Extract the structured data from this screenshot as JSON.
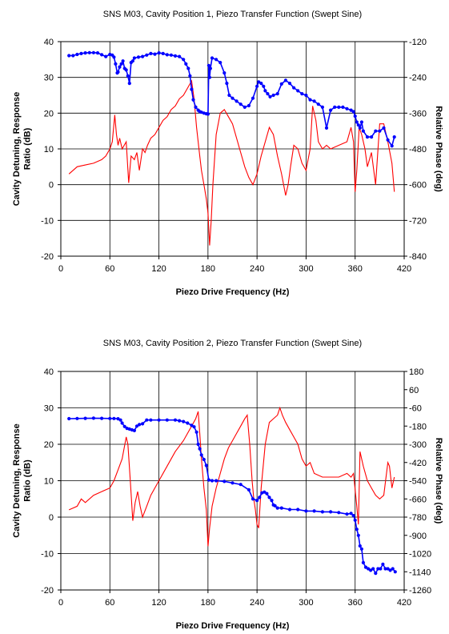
{
  "chart_data": [
    {
      "type": "line",
      "title": "SNS M03, Cavity Position 1, Piezo Transfer Function (Swept Sine)",
      "xlabel": "Piezo Drive Frequency (Hz)",
      "ylabel_left_lines": [
        "Cavity Detuning, Response",
        "Ratio (dB)"
      ],
      "ylabel_right": "Relative Phase (deg)",
      "xlim": [
        0,
        420
      ],
      "ylim": [
        -20,
        40
      ],
      "y2lim": [
        -840,
        -120
      ],
      "xticks": [
        "0",
        "60",
        "120",
        "180",
        "240",
        "300",
        "360",
        "420"
      ],
      "yticks": [
        "-20",
        "-10",
        "0",
        "10",
        "20",
        "30",
        "40"
      ],
      "y2ticks": [
        "-840",
        "-720",
        "-600",
        "-480",
        "-360",
        "-240",
        "-120"
      ],
      "grid": true,
      "series": [
        {
          "axis": "left",
          "color": "#ff0000",
          "marker": "none",
          "x": [
            10,
            20,
            30,
            40,
            50,
            55,
            60,
            63,
            66,
            68,
            70,
            72,
            75,
            80,
            83,
            86,
            90,
            93,
            96,
            100,
            103,
            106,
            110,
            115,
            120,
            125,
            130,
            135,
            140,
            145,
            150,
            155,
            160,
            163,
            166,
            168,
            170,
            172,
            175,
            178,
            180,
            182,
            184,
            186,
            190,
            195,
            200,
            205,
            210,
            215,
            220,
            225,
            230,
            235,
            240,
            245,
            250,
            255,
            260,
            265,
            270,
            275,
            278,
            281,
            285,
            290,
            295,
            300,
            305,
            308,
            312,
            315,
            320,
            325,
            330,
            340,
            350,
            355,
            358,
            360,
            362,
            365,
            368,
            372,
            375,
            380,
            385,
            390,
            395,
            400,
            405,
            408
          ],
          "y": [
            3,
            5,
            5.5,
            6,
            7,
            8,
            10,
            12,
            19.5,
            14,
            11,
            13,
            10,
            12,
            0.5,
            8,
            7,
            9,
            4,
            10,
            9,
            11,
            13,
            14,
            16,
            18,
            19,
            21,
            22,
            24,
            25,
            27,
            29,
            24,
            16,
            12,
            8,
            4,
            0,
            -4,
            -8,
            -17,
            -10,
            0,
            14,
            20,
            21,
            19,
            17,
            13,
            9,
            5,
            2,
            0,
            3,
            8,
            12,
            16,
            14,
            8,
            3,
            -3,
            0,
            5,
            11,
            10,
            6,
            4,
            10,
            22,
            18,
            12,
            10,
            11,
            10,
            11,
            12,
            16,
            12,
            -2,
            4,
            16,
            14,
            10,
            5,
            9,
            0,
            17,
            17,
            12,
            6,
            -2
          ]
        },
        {
          "axis": "right",
          "color": "#0000ff",
          "marker": "dot",
          "x": [
            10,
            15,
            20,
            25,
            30,
            35,
            40,
            45,
            50,
            55,
            60,
            63,
            65,
            67,
            69,
            70,
            72,
            74,
            76,
            78,
            80,
            82,
            84,
            86,
            88,
            90,
            95,
            100,
            105,
            110,
            115,
            120,
            125,
            130,
            135,
            140,
            145,
            150,
            153,
            156,
            158,
            160,
            162,
            165,
            168,
            170,
            172,
            175,
            178,
            180,
            181,
            182,
            183,
            185,
            190,
            195,
            200,
            203,
            206,
            210,
            215,
            220,
            225,
            230,
            235,
            240,
            242,
            245,
            248,
            250,
            253,
            256,
            260,
            265,
            270,
            275,
            280,
            285,
            290,
            295,
            300,
            305,
            310,
            315,
            320,
            325,
            330,
            335,
            340,
            345,
            350,
            355,
            358,
            360,
            362,
            364,
            366,
            368,
            370,
            375,
            380,
            385,
            390,
            395,
            400,
            405,
            408
          ],
          "y": [
            -167,
            -167,
            -163,
            -160,
            -158,
            -157,
            -157,
            -158,
            -164,
            -170,
            -163,
            -165,
            -172,
            -195,
            -225,
            -222,
            -205,
            -195,
            -185,
            -210,
            -215,
            -235,
            -260,
            -190,
            -185,
            -175,
            -172,
            -170,
            -165,
            -160,
            -162,
            -158,
            -160,
            -164,
            -165,
            -168,
            -170,
            -180,
            -195,
            -210,
            -235,
            -280,
            -315,
            -340,
            -350,
            -355,
            -357,
            -360,
            -362,
            -363,
            -200,
            -240,
            -210,
            -175,
            -180,
            -190,
            -225,
            -260,
            -300,
            -310,
            -320,
            -330,
            -340,
            -335,
            -310,
            -270,
            -255,
            -260,
            -270,
            -285,
            -295,
            -305,
            -300,
            -295,
            -262,
            -250,
            -260,
            -275,
            -285,
            -295,
            -300,
            -315,
            -320,
            -330,
            -340,
            -410,
            -350,
            -340,
            -340,
            -340,
            -345,
            -350,
            -355,
            -370,
            -390,
            -400,
            -410,
            -390,
            -420,
            -440,
            -440,
            -420,
            -420,
            -410,
            -450,
            -470,
            -440
          ]
        }
      ]
    },
    {
      "type": "line",
      "title": "SNS M03, Cavity Position 2, Piezo Transfer Function (Swept Sine)",
      "xlabel": "Piezo Drive Frequency (Hz)",
      "ylabel_left_lines": [
        "Cavity Detuning, Response",
        "Ratio (dB)"
      ],
      "ylabel_right": "Relative Phase (deg)",
      "xlim": [
        0,
        420
      ],
      "ylim": [
        -20,
        40
      ],
      "y2lim": [
        -1260,
        180
      ],
      "xticks": [
        "0",
        "60",
        "120",
        "180",
        "240",
        "300",
        "360",
        "420"
      ],
      "yticks": [
        "-20",
        "-10",
        "0",
        "10",
        "20",
        "30",
        "40"
      ],
      "y2ticks": [
        "-1260",
        "-1140",
        "-1020",
        "-900",
        "-780",
        "-660",
        "-540",
        "-420",
        "-300",
        "-180",
        "-60",
        "60",
        "180"
      ],
      "grid": true,
      "series": [
        {
          "axis": "left",
          "color": "#ff0000",
          "marker": "none",
          "x": [
            10,
            20,
            25,
            30,
            40,
            50,
            60,
            65,
            70,
            75,
            80,
            82,
            85,
            88,
            91,
            94,
            97,
            100,
            105,
            110,
            120,
            130,
            140,
            150,
            155,
            160,
            165,
            168,
            170,
            172,
            175,
            178,
            180,
            182,
            185,
            190,
            195,
            200,
            205,
            210,
            215,
            220,
            225,
            228,
            231,
            234,
            236,
            238,
            240,
            242,
            245,
            250,
            255,
            260,
            265,
            268,
            271,
            275,
            280,
            285,
            290,
            295,
            300,
            305,
            310,
            320,
            330,
            340,
            350,
            355,
            358,
            362,
            364,
            366,
            370,
            375,
            380,
            385,
            390,
            395,
            400,
            402,
            405,
            408
          ],
          "y": [
            2,
            3,
            5,
            4,
            6,
            7,
            8,
            10,
            13,
            16,
            22,
            20,
            10,
            -1,
            4,
            7,
            3,
            0,
            3,
            6,
            10,
            14,
            18,
            21,
            23,
            25,
            27,
            29,
            23,
            16,
            8,
            2,
            -8,
            -3,
            3,
            8,
            12,
            16,
            19,
            21,
            23,
            25,
            27,
            28,
            20,
            10,
            5,
            2,
            -2,
            -3,
            8,
            20,
            26,
            27,
            28,
            30,
            28,
            26,
            24,
            22,
            20,
            16,
            14,
            15,
            12,
            11,
            11,
            11,
            12,
            11,
            12,
            3,
            -2,
            18,
            14,
            10,
            8,
            6,
            5,
            6,
            15,
            14,
            8,
            11
          ]
        },
        {
          "axis": "right",
          "color": "#0000ff",
          "marker": "dot",
          "x": [
            10,
            20,
            30,
            40,
            50,
            60,
            65,
            70,
            73,
            75,
            78,
            81,
            84,
            87,
            90,
            93,
            96,
            100,
            105,
            110,
            120,
            130,
            140,
            145,
            150,
            155,
            160,
            163,
            166,
            168,
            170,
            172,
            175,
            178,
            181,
            185,
            190,
            200,
            210,
            220,
            230,
            235,
            240,
            243,
            246,
            249,
            252,
            255,
            258,
            260,
            262,
            265,
            270,
            280,
            290,
            300,
            310,
            320,
            330,
            340,
            350,
            355,
            358,
            360,
            362,
            364,
            366,
            368,
            370,
            373,
            376,
            379,
            382,
            385,
            388,
            391,
            394,
            397,
            400,
            403,
            406,
            409
          ],
          "y": [
            -131,
            -130,
            -129,
            -128,
            -129,
            -130,
            -130,
            -132,
            -140,
            -160,
            -183,
            -195,
            -200,
            -205,
            -210,
            -180,
            -170,
            -165,
            -140,
            -140,
            -140,
            -140,
            -140,
            -145,
            -150,
            -160,
            -175,
            -185,
            -220,
            -300,
            -330,
            -370,
            -400,
            -440,
            -535,
            -540,
            -540,
            -545,
            -555,
            -565,
            -600,
            -660,
            -670,
            -650,
            -620,
            -615,
            -625,
            -650,
            -670,
            -700,
            -705,
            -720,
            -720,
            -730,
            -730,
            -740,
            -740,
            -745,
            -745,
            -750,
            -760,
            -755,
            -770,
            -800,
            -860,
            -900,
            -970,
            -990,
            -1080,
            -1110,
            -1120,
            -1130,
            -1120,
            -1150,
            -1120,
            -1120,
            -1090,
            -1120,
            -1120,
            -1130,
            -1120,
            -1140
          ]
        }
      ]
    }
  ]
}
